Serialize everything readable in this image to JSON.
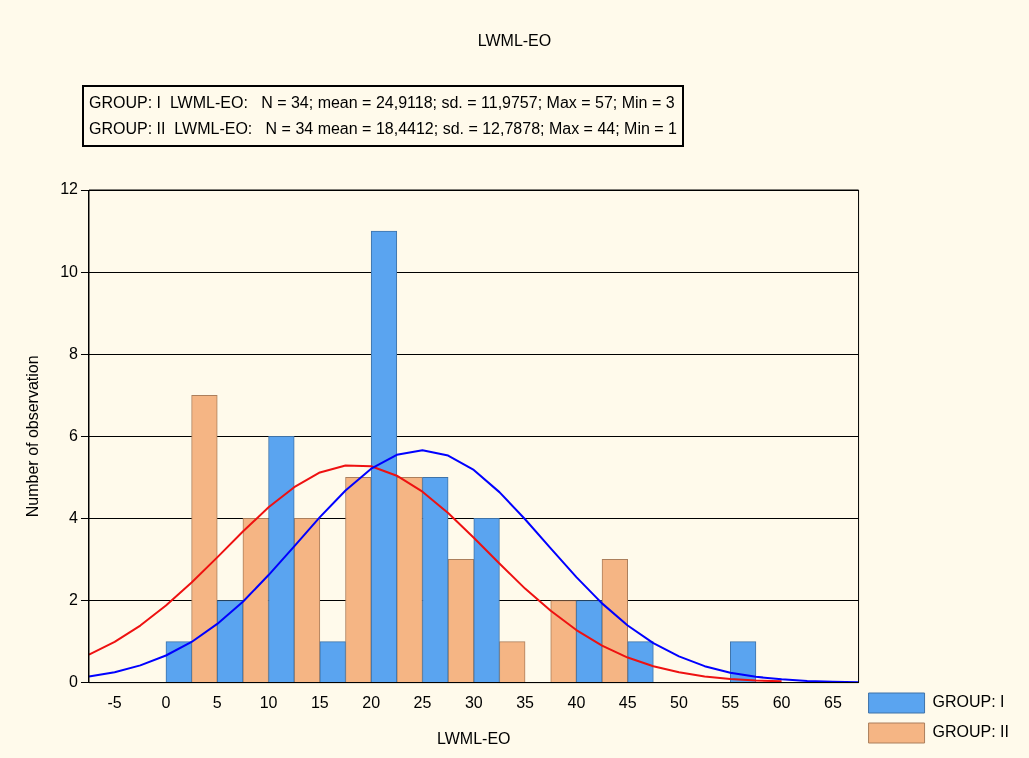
{
  "chart_data": {
    "type": "histogram",
    "title": "LWML-EO",
    "xlabel": "LWML-EO",
    "ylabel": "Number of observation",
    "annotations": [
      "GROUP: I  LWML-EO:   N = 34; mean = 24,9118; sd. = 11,9757; Max = 57; Min = 3",
      "GROUP: II  LWML-EO:   N = 34 mean = 18,4412; sd. = 12,7878; Max = 44; Min = 1"
    ],
    "bins": [
      0,
      5,
      10,
      15,
      20,
      25,
      30,
      35,
      40,
      45,
      50,
      55,
      60
    ],
    "series": [
      {
        "name": "GROUP: I",
        "color": "#5aa4f0",
        "values": [
          1,
          2,
          6,
          1,
          11,
          5,
          4,
          0,
          2,
          1,
          0,
          1
        ]
      },
      {
        "name": "GROUP: II",
        "color": "#f5b584",
        "values": [
          7,
          4,
          4,
          5,
          5,
          3,
          1,
          2,
          3,
          0,
          0,
          0
        ]
      },
      {
        "type": "line",
        "color": "#0000ff",
        "x": [
          -7.5,
          -5,
          -2.5,
          0,
          2.5,
          5,
          7.5,
          10,
          12.5,
          15,
          17.5,
          20,
          22.5,
          25,
          27.5,
          30,
          32.5,
          35,
          37.5,
          40,
          42.5,
          45,
          47.5,
          50,
          52.5,
          55,
          57.5,
          60,
          62.5,
          65,
          67.5
        ],
        "values": [
          0.15,
          0.25,
          0.42,
          0.66,
          0.99,
          1.43,
          1.97,
          2.62,
          3.32,
          4.03,
          4.68,
          5.21,
          5.55,
          5.66,
          5.53,
          5.18,
          4.64,
          3.98,
          3.27,
          2.57,
          1.93,
          1.39,
          0.96,
          0.64,
          0.4,
          0.24,
          0.14,
          0.08,
          0.04,
          0.02,
          0.01
        ]
      },
      {
        "type": "line",
        "color": "#ee1111",
        "x": [
          -7.5,
          -5,
          -2.5,
          0,
          2.5,
          5,
          7.5,
          10,
          12.5,
          15,
          17.5,
          20,
          22.5,
          25,
          27.5,
          30,
          32.5,
          35,
          37.5,
          40,
          42.5,
          45,
          47.5,
          50,
          52.5,
          55,
          57.5,
          60
        ],
        "values": [
          0.68,
          0.99,
          1.39,
          1.88,
          2.44,
          3.05,
          3.68,
          4.27,
          4.76,
          5.12,
          5.29,
          5.27,
          5.04,
          4.65,
          4.13,
          3.53,
          2.9,
          2.29,
          1.75,
          1.28,
          0.9,
          0.61,
          0.4,
          0.25,
          0.15,
          0.09,
          0.05,
          0.03
        ]
      }
    ],
    "xlim": [
      -7.5,
      67.5
    ],
    "xticks": [
      -5,
      0,
      5,
      10,
      15,
      20,
      25,
      30,
      35,
      40,
      45,
      50,
      55,
      60,
      65
    ],
    "ylim": [
      0,
      12
    ],
    "yticks": [
      0,
      2,
      4,
      6,
      8,
      10,
      12
    ],
    "grid": "y",
    "legend": "bottom right",
    "marker": "none",
    "line_style": "solid"
  }
}
